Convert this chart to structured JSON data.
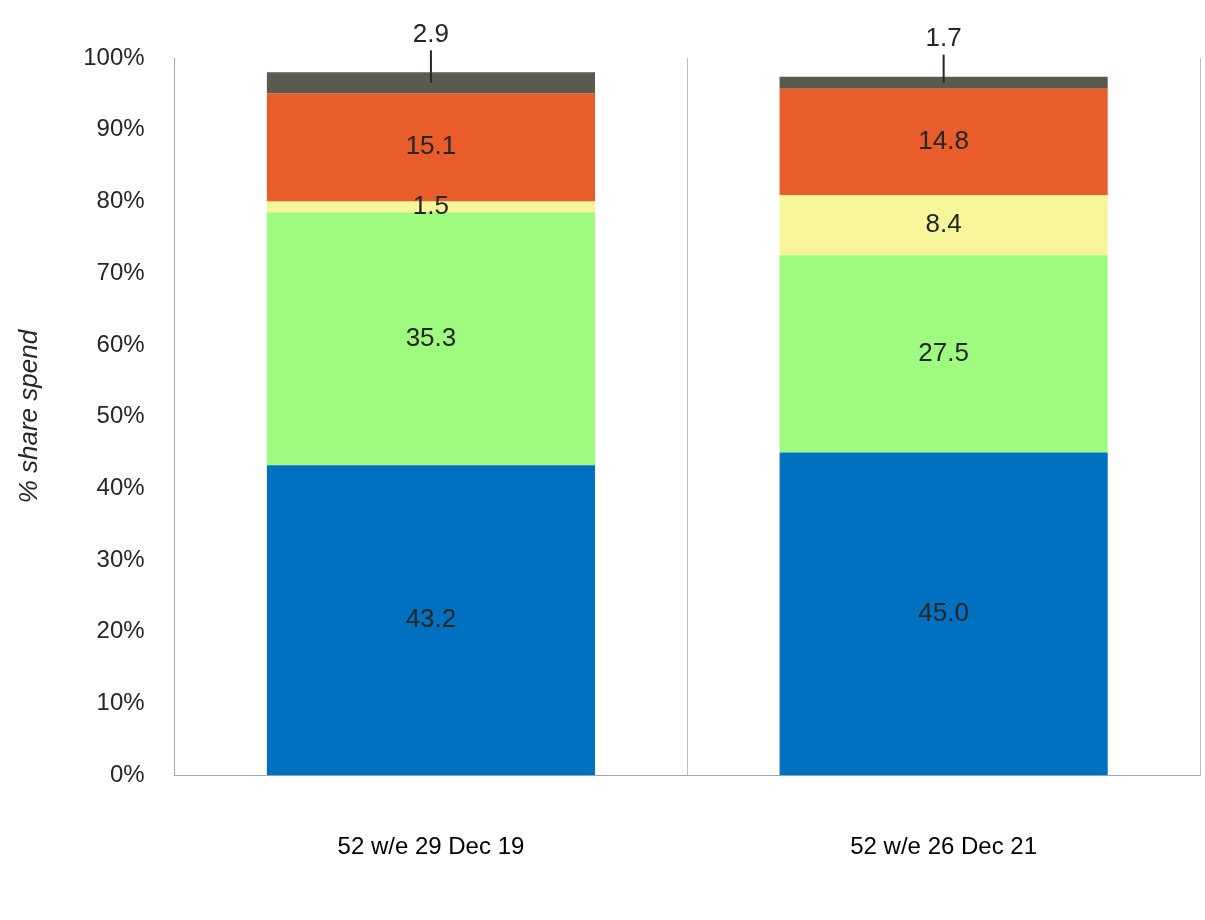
{
  "chart_data": {
    "type": "bar",
    "stacked": true,
    "ylabel": "% share spend",
    "categories": [
      "52 w/e 29 Dec 19",
      "52 w/e 26 Dec 21"
    ],
    "series": [
      {
        "color": "#0070c0",
        "values": [
          43.2,
          45.0
        ],
        "value_labels": [
          "43.2",
          "45.0"
        ]
      },
      {
        "color": "#9ffa80",
        "values": [
          35.3,
          27.5
        ],
        "value_labels": [
          "35.3",
          "27.5"
        ]
      },
      {
        "color": "#f7f59a",
        "values": [
          1.5,
          8.4
        ],
        "value_labels": [
          "1.5",
          "8.4"
        ]
      },
      {
        "color": "#e95c2b",
        "values": [
          15.1,
          14.8
        ],
        "value_labels": [
          "15.1",
          "14.8"
        ]
      },
      {
        "color": "#5a5a4e",
        "values": [
          2.9,
          1.7
        ],
        "value_labels": [
          "2.9",
          "1.7"
        ]
      }
    ],
    "ylim": [
      0,
      100
    ],
    "yticks": [
      {
        "value": 0,
        "label": "0%"
      },
      {
        "value": 10,
        "label": "10%"
      },
      {
        "value": 20,
        "label": "20%"
      },
      {
        "value": 30,
        "label": "30%"
      },
      {
        "value": 40,
        "label": "40%"
      },
      {
        "value": 50,
        "label": "50%"
      },
      {
        "value": 60,
        "label": "60%"
      },
      {
        "value": 70,
        "label": "70%"
      },
      {
        "value": 80,
        "label": "80%"
      },
      {
        "value": 90,
        "label": "90%"
      },
      {
        "value": 100,
        "label": "100%"
      }
    ],
    "grid": "x",
    "legend": false
  }
}
